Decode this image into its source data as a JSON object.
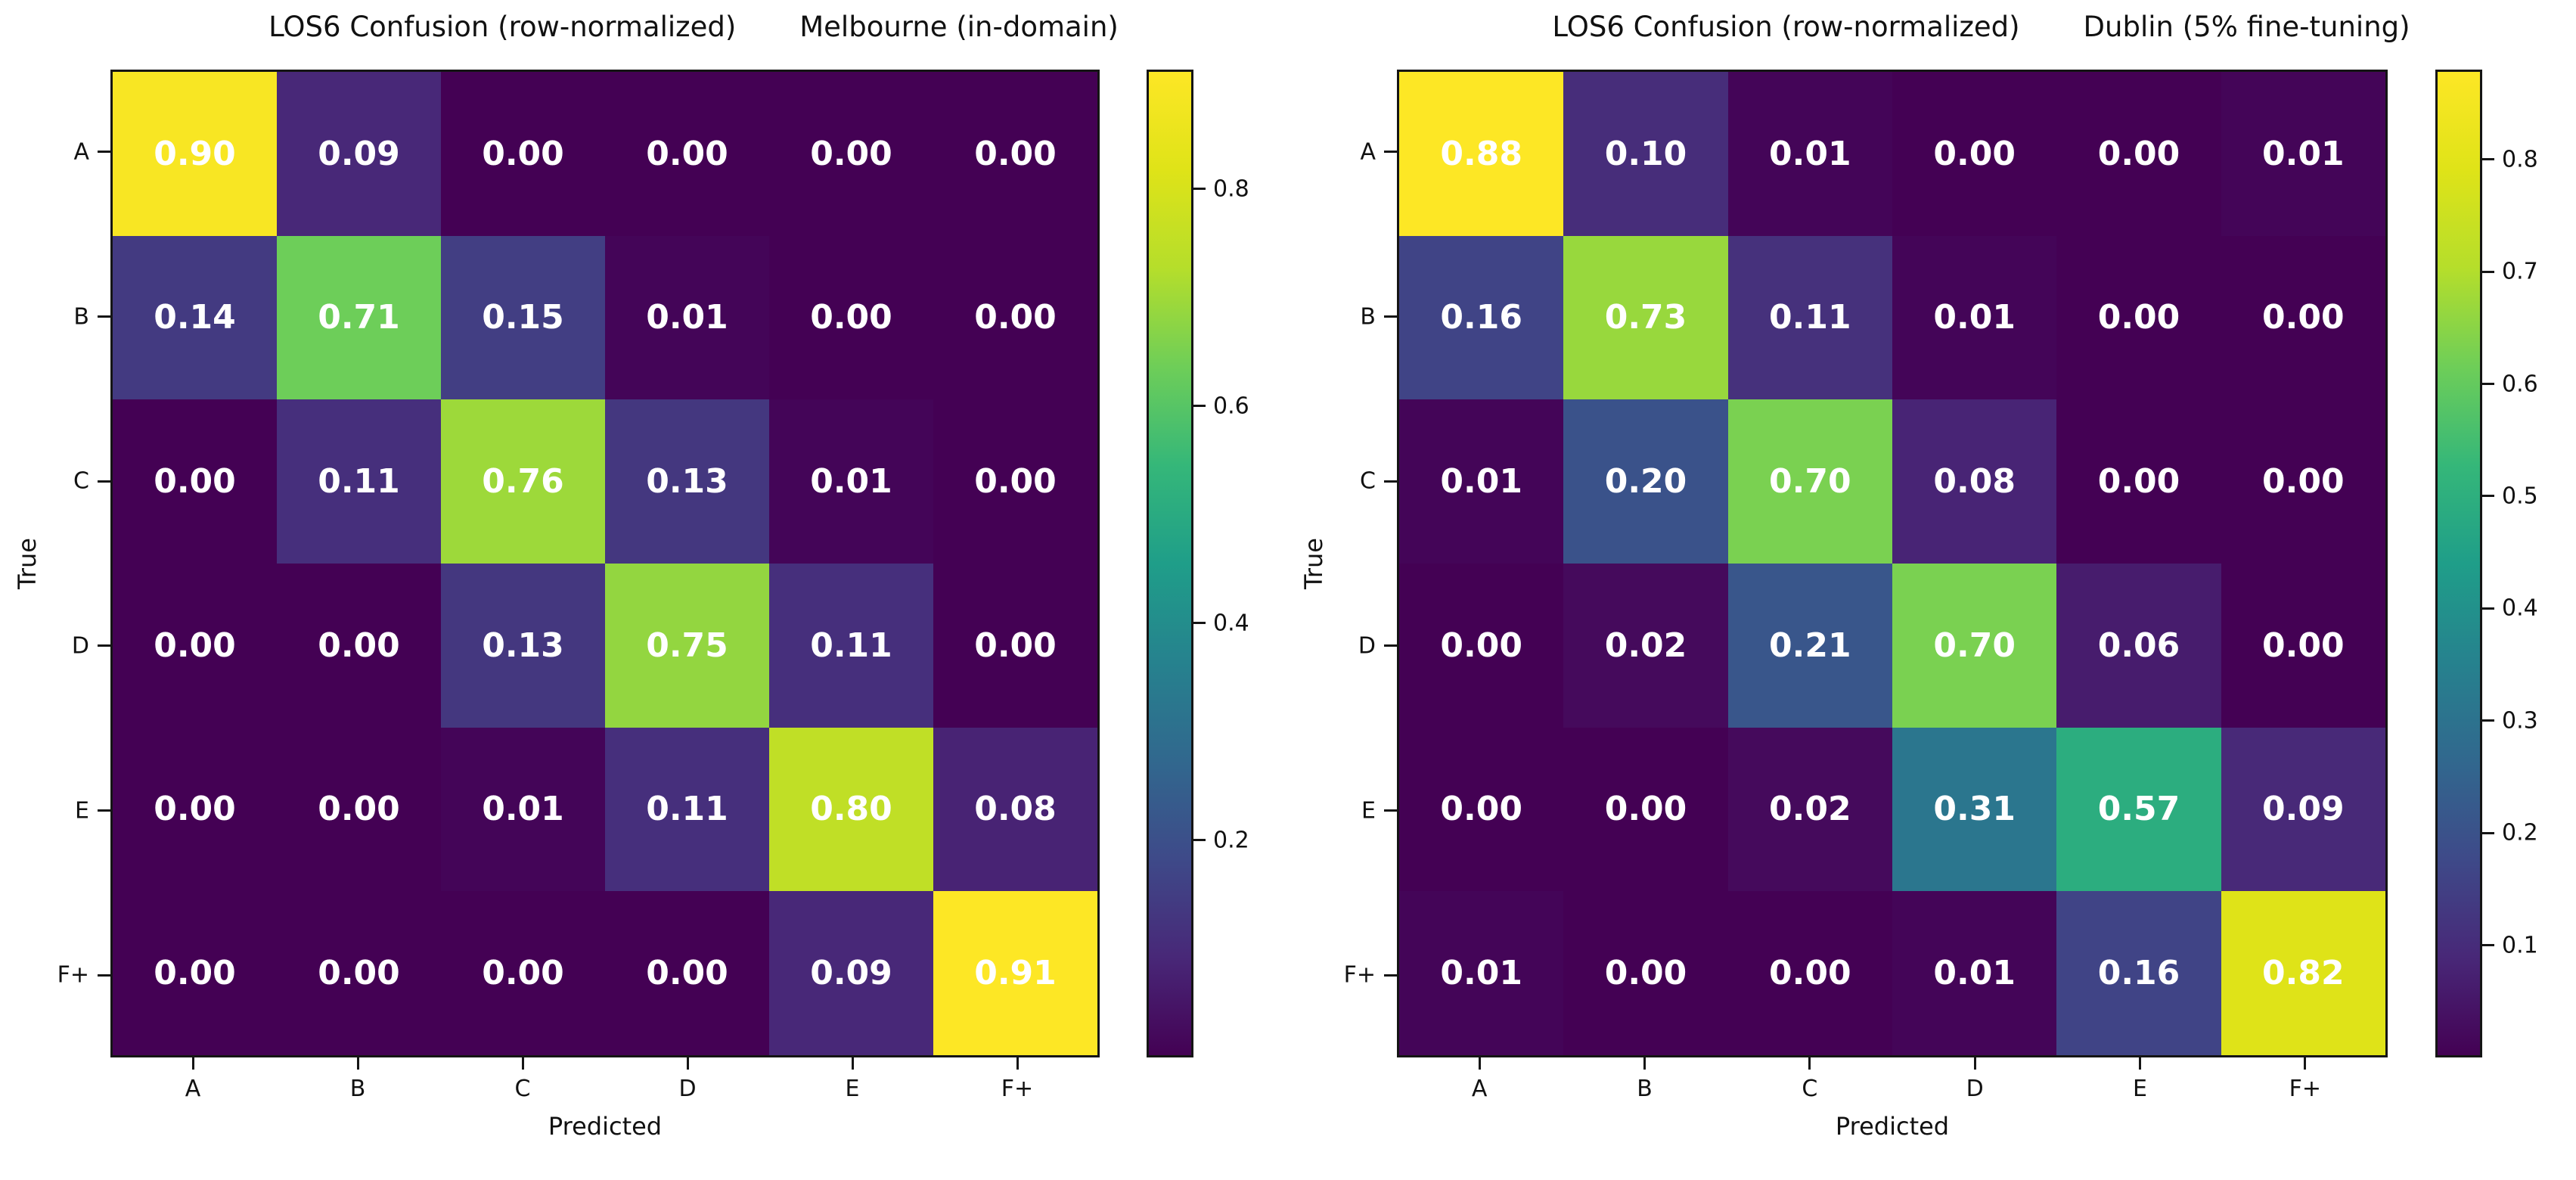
{
  "figure": {
    "background": "#ffffff"
  },
  "colors": {
    "background": "#ffffff",
    "axes_edge": "#151515",
    "tick_color": "#151515",
    "label_text": "#111111",
    "cell_text": "#ffffff",
    "viridis_stops": [
      "#440154",
      "#482878",
      "#3e4a89",
      "#31688e",
      "#26828e",
      "#1f9e89",
      "#35b779",
      "#6ece58",
      "#b5de2b",
      "#dfe318",
      "#fde725"
    ]
  },
  "chart_data": [
    {
      "type": "heatmap",
      "title_left": "LOS6 Confusion (row-normalized)",
      "title_right": "Melbourne (in-domain)",
      "xlabel": "Predicted",
      "ylabel": "True",
      "x_categories": [
        "A",
        "B",
        "C",
        "D",
        "E",
        "F+"
      ],
      "y_categories": [
        "A",
        "B",
        "C",
        "D",
        "E",
        "F+"
      ],
      "values": [
        [
          0.9,
          0.09,
          0.0,
          0.0,
          0.0,
          0.0
        ],
        [
          0.14,
          0.71,
          0.15,
          0.01,
          0.0,
          0.0
        ],
        [
          0.0,
          0.11,
          0.76,
          0.13,
          0.01,
          0.0
        ],
        [
          0.0,
          0.0,
          0.13,
          0.75,
          0.11,
          0.0
        ],
        [
          0.0,
          0.0,
          0.01,
          0.11,
          0.8,
          0.08
        ],
        [
          0.0,
          0.0,
          0.0,
          0.0,
          0.09,
          0.91
        ]
      ],
      "value_format_decimals": 2,
      "colormap": "viridis",
      "vmin": 0.0,
      "vmax": 0.91,
      "colorbar_ticks": [
        0.2,
        0.4,
        0.6,
        0.8
      ],
      "colorbar_position": "right",
      "grid": false,
      "cell_text_color": "#ffffff"
    },
    {
      "type": "heatmap",
      "title_left": "LOS6 Confusion (row-normalized)",
      "title_right": "Dublin (5% fine-tuning)",
      "xlabel": "Predicted",
      "ylabel": "True",
      "x_categories": [
        "A",
        "B",
        "C",
        "D",
        "E",
        "F+"
      ],
      "y_categories": [
        "A",
        "B",
        "C",
        "D",
        "E",
        "F+"
      ],
      "values": [
        [
          0.88,
          0.1,
          0.01,
          0.0,
          0.0,
          0.01
        ],
        [
          0.16,
          0.73,
          0.11,
          0.01,
          0.0,
          0.0
        ],
        [
          0.01,
          0.2,
          0.7,
          0.08,
          0.0,
          0.0
        ],
        [
          0.0,
          0.02,
          0.21,
          0.7,
          0.06,
          0.0
        ],
        [
          0.0,
          0.0,
          0.02,
          0.31,
          0.57,
          0.09
        ],
        [
          0.01,
          0.0,
          0.0,
          0.01,
          0.16,
          0.82
        ]
      ],
      "value_format_decimals": 2,
      "colormap": "viridis",
      "vmin": 0.0,
      "vmax": 0.88,
      "colorbar_ticks": [
        0.1,
        0.2,
        0.3,
        0.4,
        0.5,
        0.6,
        0.7,
        0.8
      ],
      "colorbar_position": "right",
      "grid": false,
      "cell_text_color": "#ffffff"
    }
  ]
}
